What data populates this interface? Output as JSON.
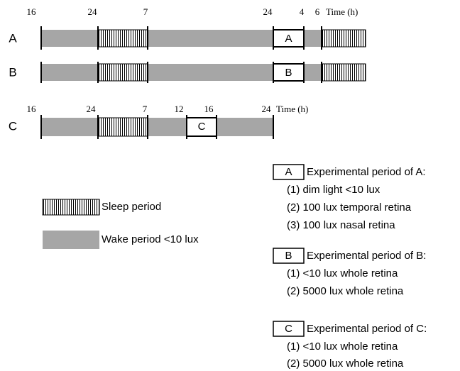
{
  "rows": [
    {
      "label": "A",
      "box": "A",
      "ticks": [
        "16",
        "24",
        "7",
        "24",
        "4",
        "6"
      ],
      "axis_label": "Time (h)"
    },
    {
      "label": "B",
      "box": "B"
    },
    {
      "label": "C",
      "box": "C",
      "ticks": [
        "16",
        "24",
        "7",
        "12",
        "16",
        "24"
      ],
      "axis_label": "Time (h)"
    }
  ],
  "legend": {
    "sleep": "Sleep period",
    "wake": "Wake period <10 lux"
  },
  "experiments": [
    {
      "key": "A",
      "title": "Experimental period of A:",
      "items": [
        "(1) dim light <10 lux",
        "(2) 100 lux temporal retina",
        "(3) 100 lux nasal retina"
      ]
    },
    {
      "key": "B",
      "title": "Experimental period of B:",
      "items": [
        "(1) <10 lux whole retina",
        "(2) 5000 lux whole retina"
      ]
    },
    {
      "key": "C",
      "title": "Experimental period of C:",
      "items": [
        "(1) <10 lux whole retina",
        "(2) 5000 lux whole retina"
      ]
    }
  ]
}
